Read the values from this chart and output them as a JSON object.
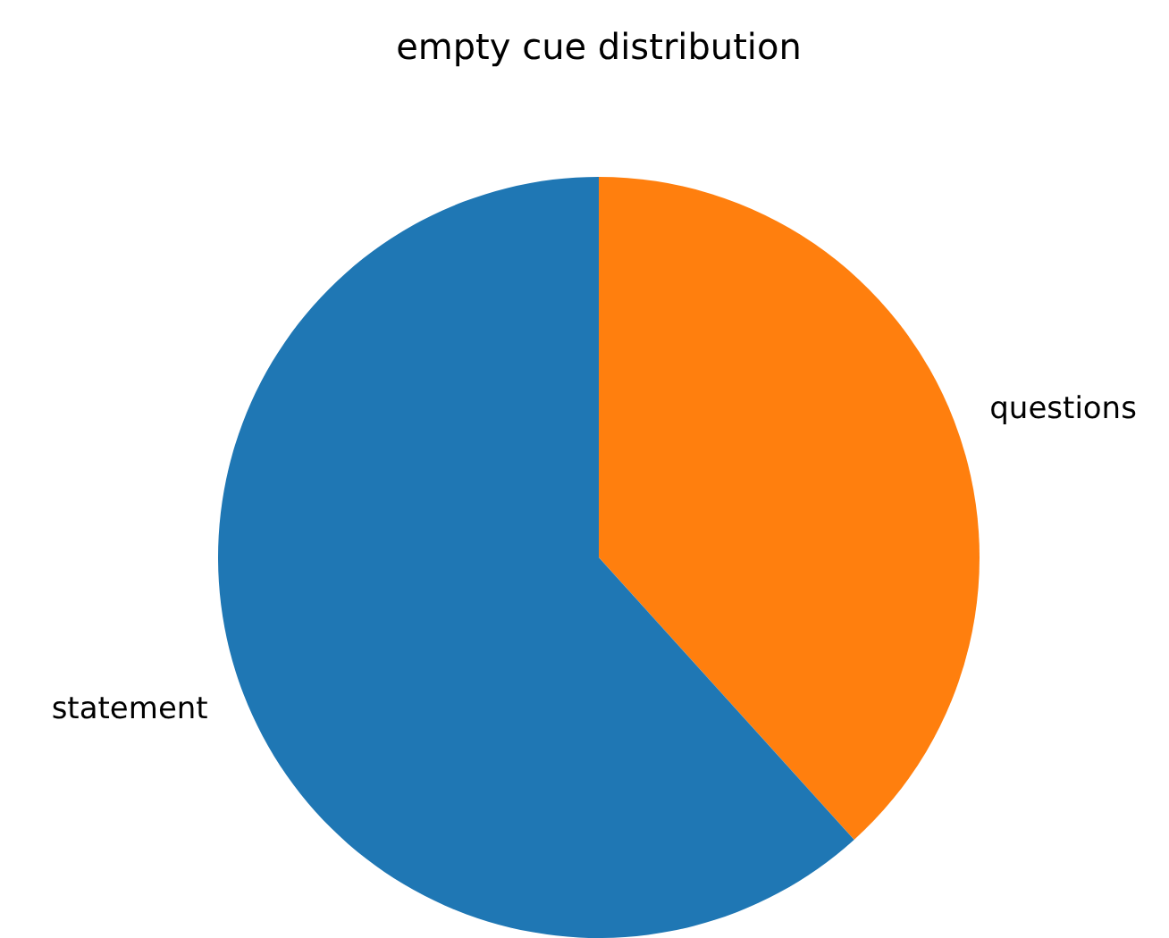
{
  "chart_data": {
    "type": "pie",
    "title": "empty cue distribution",
    "categories": [
      "questions",
      "statement"
    ],
    "values": [
      38.3,
      61.7
    ],
    "colors": [
      "#ff7f0e",
      "#1f77b4"
    ]
  }
}
